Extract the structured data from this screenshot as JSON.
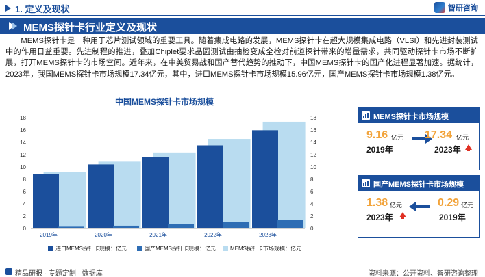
{
  "header": {
    "section": "1. 定义及现状",
    "logo": "智研咨询"
  },
  "title": "MEMS探针卡行业定义及现状",
  "description": "MEMS探针卡是一种用于芯片测试领域的重要工具。随着集成电路的发展，MEMS探针卡在超大规模集成电路（VLSI）和先进封装测试中的作用日益重要。先进制程的推进，叠加Chiplet要求晶圆测试由抽检变成全检对前道探针带来的增量需求，共同驱动探针卡市场不断扩展，打开MEMS探针卡的市场空间。近年来，在中美贸易战和国产替代趋势的推动下，中国MEMS探针卡的国产化进程显著加速。据统计，2023年，我国MEMS探针卡市场规模17.34亿元，其中，进口MEMS探针卡市场规模15.96亿元，国产MEMS探针卡市场规模1.38亿元。",
  "chart_data": {
    "type": "bar",
    "title": "中国MEMS探针卡市场规模",
    "categories": [
      "2019年",
      "2020年",
      "2021年",
      "2022年",
      "2023年"
    ],
    "series": [
      {
        "name": "进口MEMS探针卡规模：亿元",
        "values": [
          8.87,
          10.4,
          11.6,
          13.5,
          15.96
        ],
        "color": "#1b4f9c"
      },
      {
        "name": "国产MEMS探针卡规模：亿元",
        "values": [
          0.29,
          0.45,
          0.75,
          1.05,
          1.38
        ],
        "color": "#2e6db4"
      },
      {
        "name": "MEMS探针卡市场规模：亿元",
        "values": [
          9.16,
          10.85,
          12.35,
          14.55,
          17.34
        ],
        "color": "#b9dcf0"
      }
    ],
    "ylim": [
      0,
      18
    ],
    "yticks": [
      0,
      2,
      4,
      6,
      8,
      10,
      12,
      14,
      16,
      18
    ],
    "y2ticks": [
      0,
      2,
      4,
      6,
      8,
      10,
      12,
      14,
      16,
      18
    ],
    "grid": false,
    "legend": "bottom"
  },
  "card_market": {
    "title": "MEMS探针卡市场规模",
    "left_value": "9.16",
    "left_unit": "亿元",
    "left_year": "2019年",
    "right_value": "17.34",
    "right_unit": "亿元",
    "right_year": "2023年"
  },
  "card_domestic": {
    "title": "国产MEMS探针卡市场规模",
    "left_value": "1.38",
    "left_unit": "亿元",
    "left_year": "2023年",
    "right_value": "0.29",
    "right_unit": "亿元",
    "right_year": "2019年"
  },
  "footer": {
    "left": "精品研报 · 专题定制 · 数据库",
    "right": "资料来源：公开资料、智研咨询整理"
  },
  "colors": {
    "brand": "#1b4f9c",
    "accent": "#f2a33a",
    "up": "#e03124"
  },
  "icons": [
    "title-marker-icon",
    "logo-icon",
    "card-chart-icon",
    "up-arrow-icon",
    "right-arrow-icon",
    "left-arrow-icon",
    "footer-icon"
  ]
}
